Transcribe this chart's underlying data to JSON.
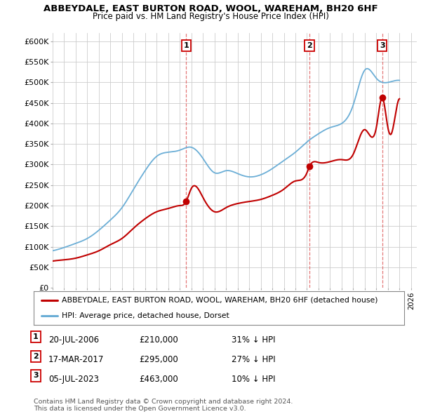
{
  "title": "ABBEYDALE, EAST BURTON ROAD, WOOL, WAREHAM, BH20 6HF",
  "subtitle": "Price paid vs. HM Land Registry's House Price Index (HPI)",
  "ylim": [
    0,
    620000
  ],
  "yticks": [
    0,
    50000,
    100000,
    150000,
    200000,
    250000,
    300000,
    350000,
    400000,
    450000,
    500000,
    550000,
    600000
  ],
  "ytick_labels": [
    "£0",
    "£50K",
    "£100K",
    "£150K",
    "£200K",
    "£250K",
    "£300K",
    "£350K",
    "£400K",
    "£450K",
    "£500K",
    "£550K",
    "£600K"
  ],
  "hpi_color": "#6baed6",
  "price_color": "#c00000",
  "transactions": [
    {
      "year": 2006.55,
      "price": 210000,
      "label": "1"
    },
    {
      "year": 2017.21,
      "price": 295000,
      "label": "2"
    },
    {
      "year": 2023.51,
      "price": 463000,
      "label": "3"
    }
  ],
  "legend1": "ABBEYDALE, EAST BURTON ROAD, WOOL, WAREHAM, BH20 6HF (detached house)",
  "legend2": "HPI: Average price, detached house, Dorset",
  "footer1": "Contains HM Land Registry data © Crown copyright and database right 2024.",
  "footer2": "This data is licensed under the Open Government Licence v3.0.",
  "table_rows": [
    [
      "1",
      "20-JUL-2006",
      "£210,000",
      "31% ↓ HPI"
    ],
    [
      "2",
      "17-MAR-2017",
      "£295,000",
      "27% ↓ HPI"
    ],
    [
      "3",
      "05-JUL-2023",
      "£463,000",
      "10% ↓ HPI"
    ]
  ],
  "background_color": "#ffffff",
  "grid_color": "#cccccc",
  "hpi_data": {
    "years": [
      1995,
      1996,
      1997,
      1998,
      1999,
      2000,
      2001,
      2002,
      2003,
      2004,
      2005,
      2006,
      2007,
      2008,
      2009,
      2010,
      2011,
      2012,
      2013,
      2014,
      2015,
      2016,
      2017,
      2018,
      2019,
      2020,
      2021,
      2022,
      2023,
      2024,
      2025
    ],
    "values": [
      90000,
      98000,
      108000,
      120000,
      140000,
      165000,
      195000,
      240000,
      285000,
      320000,
      330000,
      335000,
      342000,
      315000,
      280000,
      285000,
      278000,
      270000,
      275000,
      290000,
      310000,
      330000,
      355000,
      375000,
      390000,
      400000,
      445000,
      530000,
      510000,
      500000,
      505000
    ]
  },
  "prop_data": {
    "years": [
      1995,
      1996,
      1997,
      1998,
      1999,
      2000,
      2001,
      2002,
      2003,
      2004,
      2005,
      2006,
      2006.55,
      2007,
      2008,
      2009,
      2010,
      2011,
      2012,
      2013,
      2014,
      2015,
      2016,
      2017,
      2017.21,
      2018,
      2019,
      2020,
      2021,
      2022,
      2023,
      2023.51,
      2024,
      2024.3,
      2024.7,
      2025
    ],
    "values": [
      65000,
      68000,
      72000,
      80000,
      90000,
      105000,
      120000,
      145000,
      168000,
      185000,
      193000,
      200000,
      210000,
      242000,
      220000,
      185000,
      195000,
      205000,
      210000,
      215000,
      225000,
      240000,
      260000,
      280000,
      295000,
      305000,
      307000,
      312000,
      325000,
      385000,
      390000,
      463000,
      390000,
      375000,
      430000,
      460000
    ]
  }
}
